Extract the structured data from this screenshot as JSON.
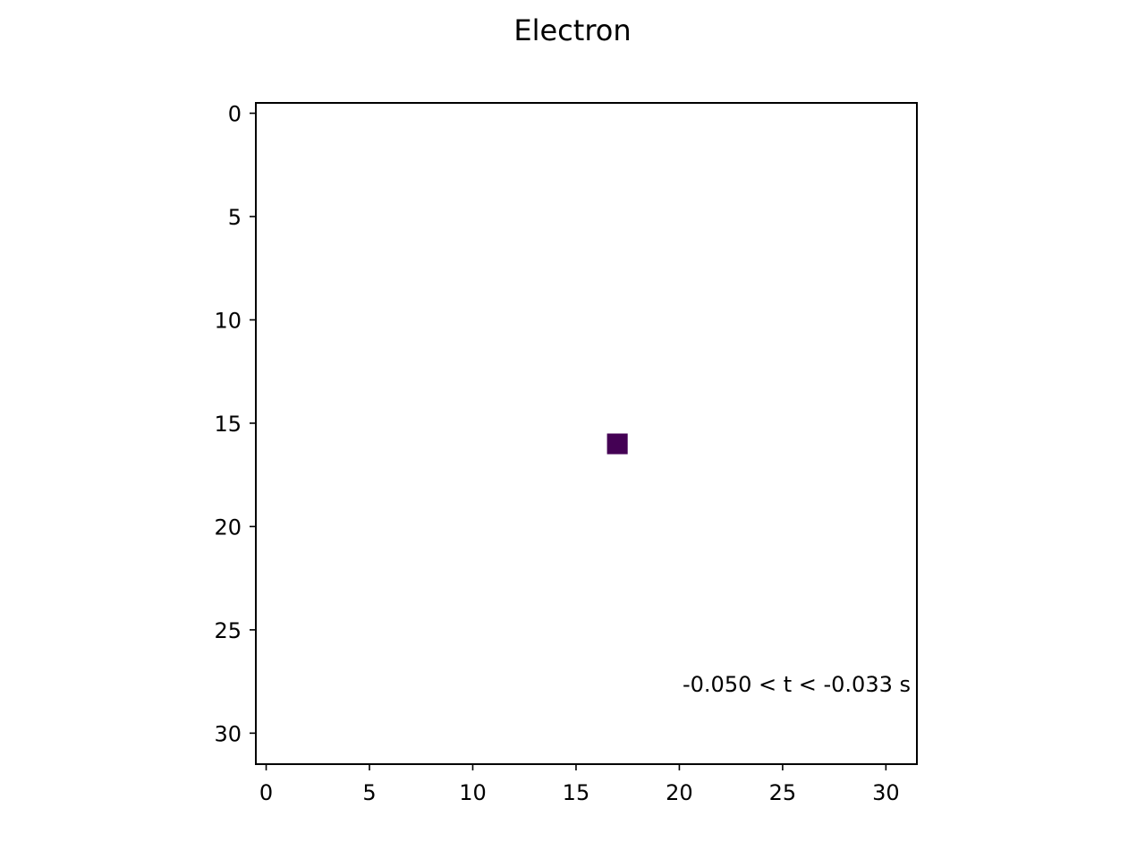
{
  "chart_data": {
    "type": "heatmap",
    "title": "Electron",
    "xlabel": "",
    "ylabel": "",
    "xlim": [
      -0.5,
      31.5
    ],
    "ylim": [
      31.5,
      -0.5
    ],
    "y_inverted": true,
    "grid": false,
    "x_ticks": [
      0,
      5,
      10,
      15,
      20,
      25,
      30
    ],
    "x_tick_labels": [
      "0",
      "5",
      "10",
      "15",
      "20",
      "25",
      "30"
    ],
    "y_ticks": [
      0,
      5,
      10,
      15,
      20,
      25,
      30
    ],
    "y_tick_labels": [
      "0",
      "5",
      "10",
      "15",
      "20",
      "25",
      "30"
    ],
    "grid_size": [
      32,
      32
    ],
    "cells": [
      {
        "x": 17,
        "y": 16,
        "color": "#440154"
      }
    ],
    "annotation": {
      "text": "-0.050 < t < -0.033  s",
      "placement": "bottom-right"
    }
  }
}
